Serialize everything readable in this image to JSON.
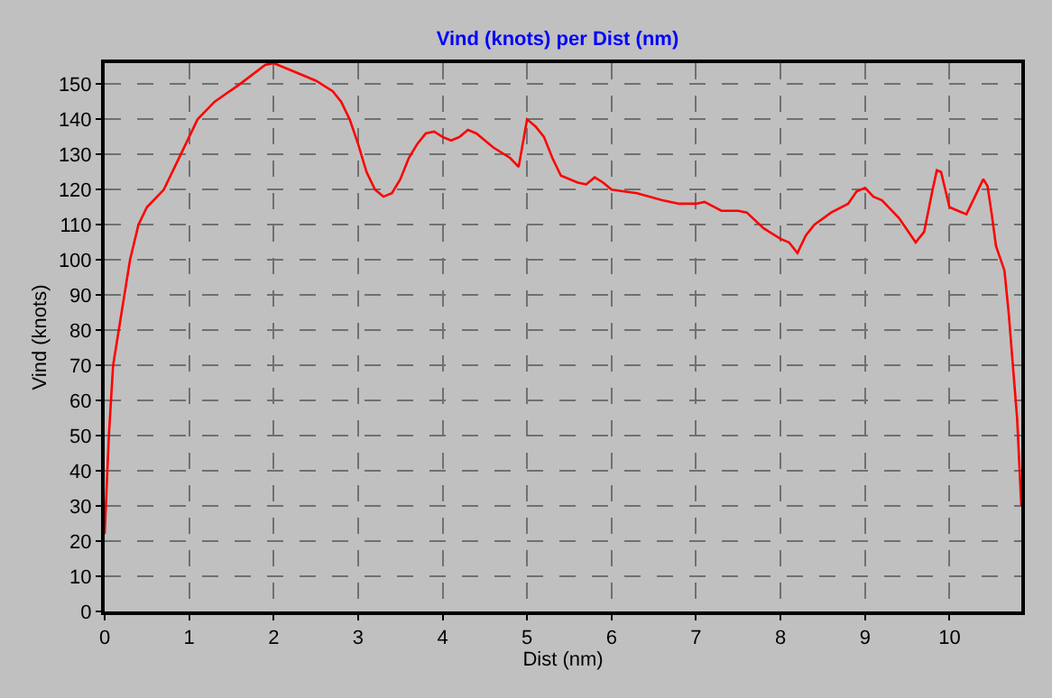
{
  "chart_data": {
    "type": "line",
    "title": "Vind (knots) per Dist (nm)",
    "xlabel": "Dist (nm)",
    "ylabel": "Vind (knots)",
    "xlim": [
      0,
      10.85
    ],
    "ylim": [
      0,
      156
    ],
    "xticks": [
      0,
      1,
      2,
      3,
      4,
      5,
      6,
      7,
      8,
      9,
      10
    ],
    "yticks": [
      0,
      10,
      20,
      30,
      40,
      50,
      60,
      70,
      80,
      90,
      100,
      110,
      120,
      130,
      140,
      150
    ],
    "grid": true,
    "legend": false,
    "marker": "none",
    "line_style": "solid",
    "series": [
      {
        "color": "#ff0000",
        "x": [
          0,
          0.05,
          0.1,
          0.2,
          0.3,
          0.4,
          0.5,
          0.7,
          0.9,
          1.0,
          1.1,
          1.3,
          1.6,
          1.9,
          2.0,
          2.2,
          2.5,
          2.7,
          2.8,
          2.9,
          3.0,
          3.1,
          3.2,
          3.3,
          3.4,
          3.5,
          3.6,
          3.7,
          3.8,
          3.9,
          4.0,
          4.1,
          4.2,
          4.3,
          4.4,
          4.6,
          4.8,
          4.9,
          5.0,
          5.1,
          5.2,
          5.3,
          5.4,
          5.6,
          5.7,
          5.8,
          5.9,
          6.0,
          6.3,
          6.6,
          6.8,
          7.0,
          7.1,
          7.3,
          7.5,
          7.6,
          7.8,
          8.0,
          8.1,
          8.2,
          8.3,
          8.4,
          8.6,
          8.8,
          8.9,
          9.0,
          9.1,
          9.2,
          9.4,
          9.6,
          9.7,
          9.8,
          9.85,
          9.9,
          10.0,
          10.1,
          10.2,
          10.3,
          10.4,
          10.45,
          10.5,
          10.55,
          10.65,
          10.7,
          10.8,
          10.85
        ],
        "values": [
          22,
          50,
          70,
          85,
          100,
          110,
          115,
          120,
          130,
          135,
          140,
          145,
          150,
          155.5,
          156,
          154,
          151,
          148,
          145,
          140,
          133,
          125,
          120,
          118,
          119,
          123,
          129,
          133,
          136,
          136.5,
          135,
          134,
          135,
          137,
          136,
          132,
          129,
          126.5,
          140,
          138,
          135,
          129,
          124,
          122,
          121.5,
          123.5,
          122,
          120,
          119,
          117,
          116,
          116,
          116.5,
          114,
          114,
          113.5,
          109,
          106,
          105,
          102,
          107,
          110,
          113.5,
          116,
          119.5,
          120.5,
          118,
          117,
          112,
          105,
          108,
          120,
          125.5,
          125,
          115,
          114,
          113,
          118,
          123,
          121,
          113,
          104,
          97,
          85,
          55,
          30
        ]
      }
    ]
  }
}
